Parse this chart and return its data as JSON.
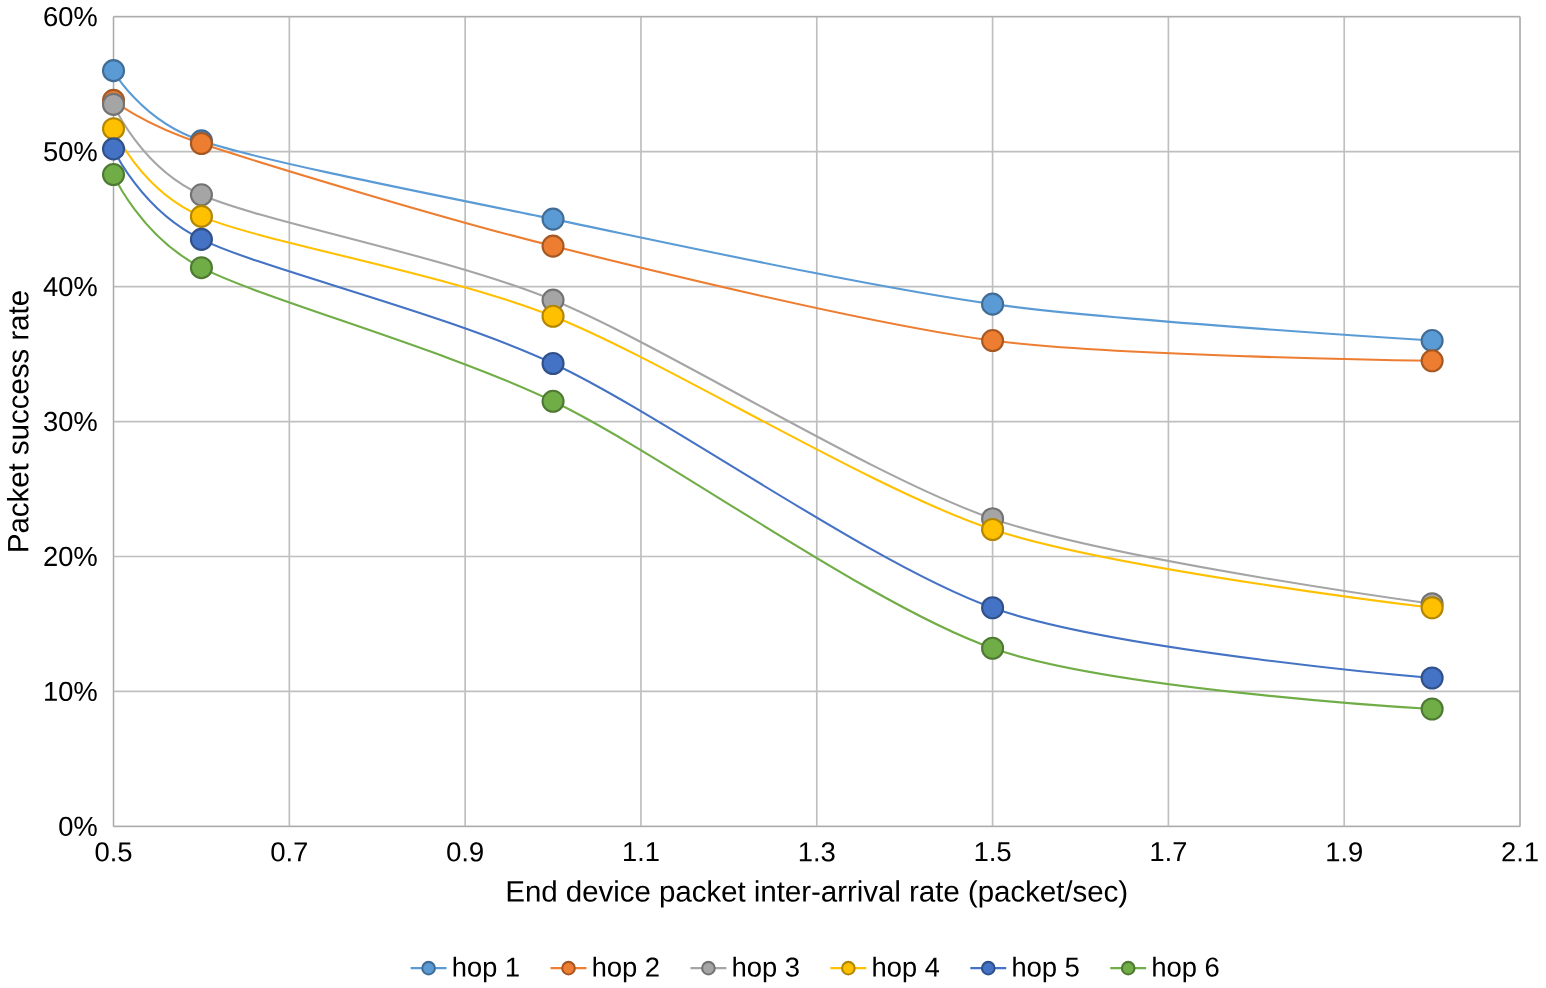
{
  "chart_data": {
    "type": "line",
    "xlabel": "End device packet inter-arrival rate (packet/sec)",
    "ylabel": "Packet success  rate",
    "x": [
      0.5,
      0.6,
      1.0,
      1.5,
      2.0
    ],
    "series": [
      {
        "name": "hop 1",
        "color": "#5b9bd5",
        "values": [
          56,
          50.8,
          45,
          38.7,
          36
        ]
      },
      {
        "name": "hop 2",
        "color": "#ed7d31",
        "values": [
          53.8,
          50.6,
          43,
          36,
          34.5
        ]
      },
      {
        "name": "hop 3",
        "color": "#a5a5a5",
        "values": [
          53.5,
          46.8,
          39,
          22.8,
          16.5
        ]
      },
      {
        "name": "hop 4",
        "color": "#ffc000",
        "values": [
          51.7,
          45.2,
          37.8,
          22,
          16.2
        ]
      },
      {
        "name": "hop 5",
        "color": "#4472c4",
        "values": [
          50.2,
          43.5,
          34.3,
          16.2,
          11
        ]
      },
      {
        "name": "hop 6",
        "color": "#70ad47",
        "values": [
          48.3,
          41.4,
          31.5,
          13.2,
          8.7
        ]
      }
    ],
    "xlim": [
      0.5,
      2.1
    ],
    "xticks": [
      0.5,
      0.7,
      0.9,
      1.1,
      1.3,
      1.5,
      1.7,
      1.9,
      2.1
    ],
    "ylim": [
      0,
      60
    ],
    "yticks": [
      {
        "value": 0,
        "label": "0%"
      },
      {
        "value": 10,
        "label": "10%"
      },
      {
        "value": 20,
        "label": "20%"
      },
      {
        "value": 30,
        "label": "30%"
      },
      {
        "value": 40,
        "label": "40%"
      },
      {
        "value": 50,
        "label": "50%"
      },
      {
        "value": 60,
        "label": "60%"
      }
    ],
    "grid": true,
    "legend": "bottom",
    "marker": "circle",
    "line_style": "solid"
  }
}
